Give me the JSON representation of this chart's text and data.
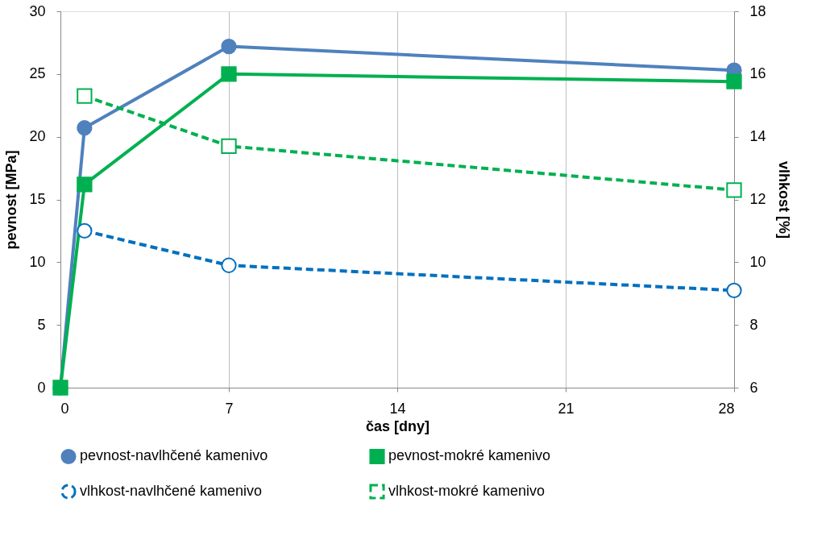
{
  "chart_data": {
    "type": "line",
    "xlabel": "čas [dny]",
    "ylabel": "pevnost [MPa]",
    "y2label": "vlhkost [%]",
    "xlim": [
      0,
      28
    ],
    "xticks": [
      0,
      7,
      14,
      21,
      28
    ],
    "ylim": [
      0,
      30
    ],
    "yticks": [
      0,
      5,
      10,
      15,
      20,
      25,
      30
    ],
    "y2lim": [
      6,
      18
    ],
    "y2ticks": [
      6,
      8,
      10,
      12,
      14,
      16,
      18
    ],
    "grid": "x",
    "legend": "bottom",
    "series": [
      {
        "name": "pevnost-navlhčené kamenivo",
        "color": "#4f81bd",
        "x": [
          0,
          1,
          7,
          28
        ],
        "values": [
          0,
          20.7,
          27.2,
          25.3
        ],
        "marker": "circle",
        "line_style": "solid"
      },
      {
        "name": "pevnost-mokré kamenivo",
        "color": "#00b050",
        "x": [
          0,
          1,
          7,
          28
        ],
        "values": [
          0,
          16.2,
          25.0,
          24.4
        ],
        "marker": "square",
        "line_style": "solid"
      },
      {
        "name": "vlhkost-navlhčené kamenivo",
        "color": "#0070c0",
        "x": [
          1,
          7,
          28
        ],
        "values": [
          11.0,
          9.9,
          9.1
        ],
        "marker": "circle",
        "line_style": "dashed",
        "axis": "y2"
      },
      {
        "name": "vlhkost-mokré kamenivo",
        "color": "#00b050",
        "x": [
          1,
          7,
          28
        ],
        "values": [
          15.3,
          13.7,
          12.3
        ],
        "marker": "square",
        "line_style": "dashed",
        "axis": "y2"
      }
    ]
  }
}
